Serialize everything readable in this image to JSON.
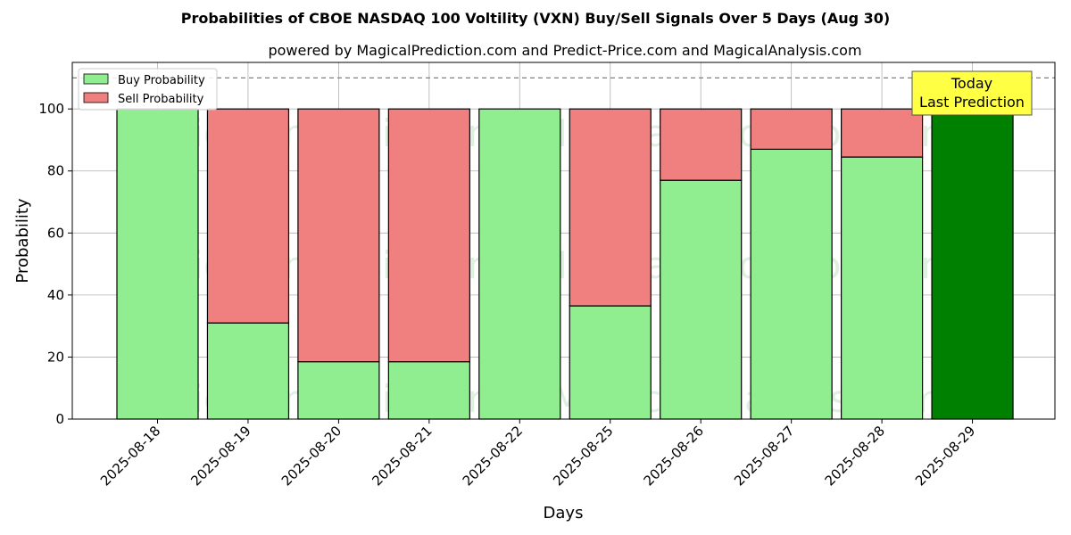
{
  "chart_data": {
    "type": "bar",
    "stacked": true,
    "title": "Probabilities of CBOE NASDAQ 100 Voltility (VXN) Buy/Sell Signals Over 5 Days (Aug 30)",
    "subtitle": "powered by MagicalPrediction.com and Predict-Price.com and MagicalAnalysis.com",
    "xlabel": "Days",
    "ylabel": "Probability",
    "ylim": [
      0,
      115
    ],
    "yticks": [
      0,
      20,
      40,
      60,
      80,
      100
    ],
    "reference_line": 110,
    "grid": true,
    "legend_placement": "top-left",
    "categories": [
      "2025-08-18",
      "2025-08-19",
      "2025-08-20",
      "2025-08-21",
      "2025-08-22",
      "2025-08-25",
      "2025-08-26",
      "2025-08-27",
      "2025-08-28",
      "2025-08-29"
    ],
    "series": [
      {
        "name": "Buy Probability",
        "color": "#90ee90",
        "values": [
          100,
          31,
          18.5,
          18.5,
          100,
          36.5,
          77,
          87,
          84.5,
          100
        ]
      },
      {
        "name": "Sell Probability",
        "color": "#f08080",
        "values": [
          0,
          69,
          81.5,
          81.5,
          0,
          63.5,
          23,
          13,
          15.5,
          0
        ]
      }
    ],
    "highlight": {
      "category": "2025-08-29",
      "color": "#008000"
    },
    "annotation": {
      "line1": "Today",
      "line2": "Last Prediction",
      "color": "#ffff44"
    },
    "watermarks": [
      "MagicalAnalysis.com",
      "MagicalPrediction.com"
    ]
  }
}
